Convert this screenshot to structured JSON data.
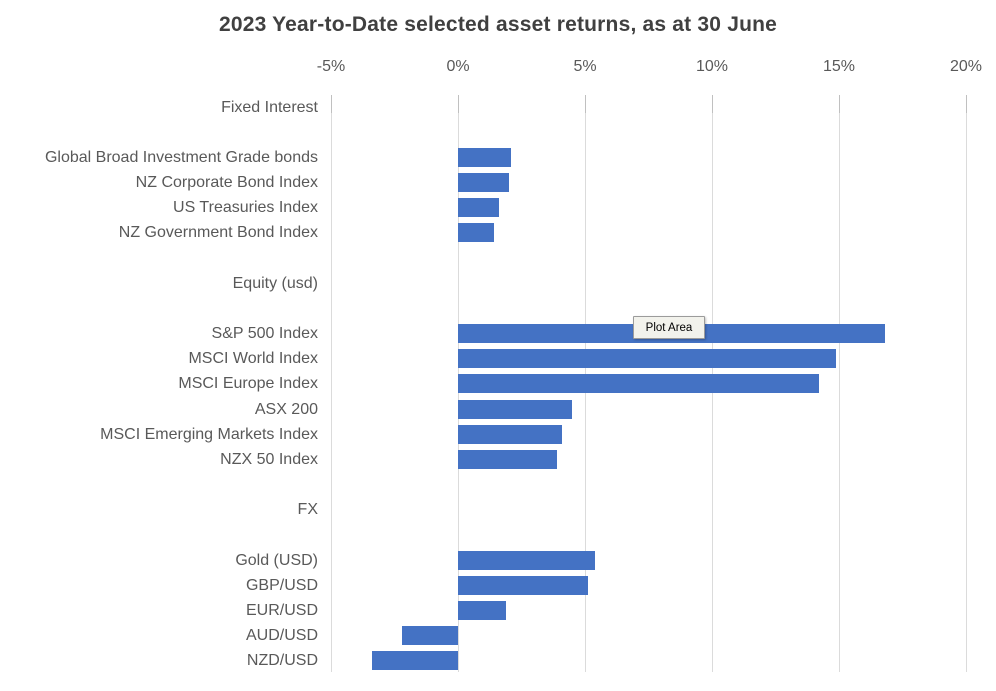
{
  "chart_data": {
    "type": "bar",
    "orientation": "horizontal",
    "title": "2023 Year-to-Date selected asset returns, as at 30 June",
    "xlabel": "",
    "ylabel": "",
    "unit": "%",
    "xlim": [
      -5,
      20
    ],
    "grid": true,
    "legend": false,
    "x_axis": {
      "tick_labels": [
        "-5%",
        "0%",
        "5%",
        "10%",
        "15%",
        "20%"
      ],
      "tick_values": [
        -5,
        0,
        5,
        10,
        15,
        20
      ]
    },
    "rows": [
      {
        "label": "Fixed Interest",
        "value": null,
        "row": 0,
        "is_group_header": true
      },
      {
        "label": "Global Broad Investment Grade bonds",
        "value": 2.1,
        "row": 2,
        "is_group_header": false
      },
      {
        "label": "NZ Corporate Bond Index",
        "value": 2.0,
        "row": 3,
        "is_group_header": false
      },
      {
        "label": "US Treasuries Index",
        "value": 1.6,
        "row": 4,
        "is_group_header": false
      },
      {
        "label": "NZ Government Bond Index",
        "value": 1.4,
        "row": 5,
        "is_group_header": false
      },
      {
        "label": "Equity (usd)",
        "value": null,
        "row": 7,
        "is_group_header": true
      },
      {
        "label": "S&P 500 Index",
        "value": 16.8,
        "row": 9,
        "is_group_header": false
      },
      {
        "label": "MSCI World Index",
        "value": 14.9,
        "row": 10,
        "is_group_header": false
      },
      {
        "label": "MSCI Europe Index",
        "value": 14.2,
        "row": 11,
        "is_group_header": false
      },
      {
        "label": "ASX 200",
        "value": 4.5,
        "row": 12,
        "is_group_header": false
      },
      {
        "label": "MSCI Emerging Markets Index",
        "value": 4.1,
        "row": 13,
        "is_group_header": false
      },
      {
        "label": "NZX 50 Index",
        "value": 3.9,
        "row": 14,
        "is_group_header": false
      },
      {
        "label": "FX",
        "value": null,
        "row": 16,
        "is_group_header": true
      },
      {
        "label": "Gold (USD)",
        "value": 5.4,
        "row": 18,
        "is_group_header": false
      },
      {
        "label": "GBP/USD",
        "value": 5.1,
        "row": 19,
        "is_group_header": false
      },
      {
        "label": "EUR/USD",
        "value": 1.9,
        "row": 20,
        "is_group_header": false
      },
      {
        "label": "AUD/USD",
        "value": -2.2,
        "row": 21,
        "is_group_header": false
      },
      {
        "label": "NZD/USD",
        "value": -3.4,
        "row": 22,
        "is_group_header": false
      }
    ]
  },
  "tooltip": {
    "label": "Plot Area"
  },
  "colors": {
    "bar": "#4472C4",
    "gridline": "#DBDBDB",
    "tick": "#C0C0C0",
    "axis_text": "#595959",
    "title_text": "#404040",
    "tooltip_bg": "#F2F2EC",
    "tooltip_border": "#9B9B9B"
  }
}
